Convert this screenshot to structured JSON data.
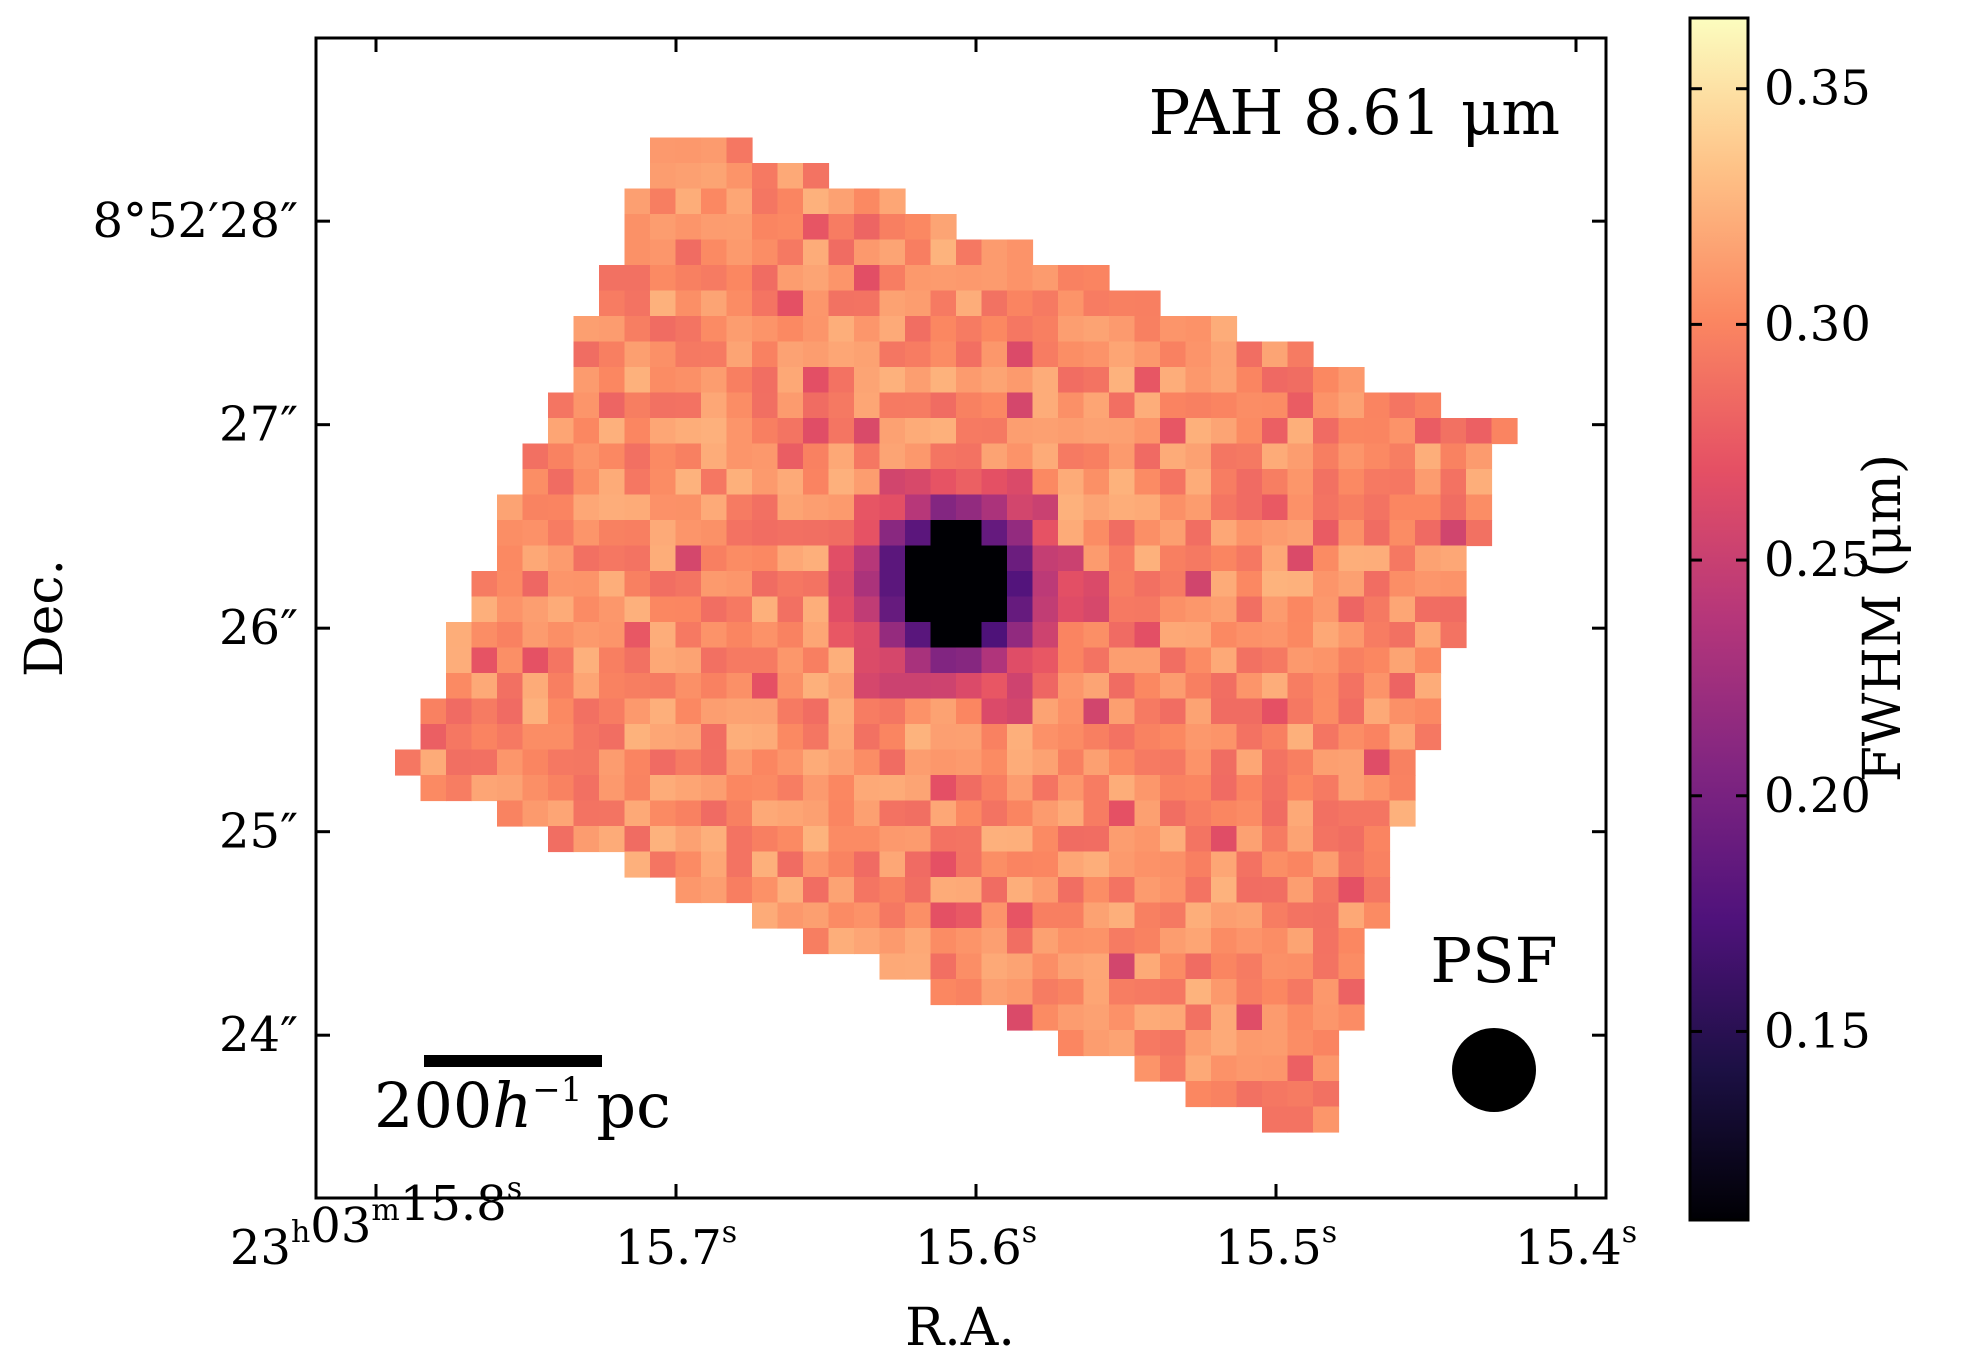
{
  "chart_data": {
    "type": "heatmap",
    "title": "",
    "annotation": "PAH 8.61 μm",
    "xlabel": "R.A.",
    "ylabel": "Dec.",
    "x_ticks": [
      {
        "ra_s": 15.8,
        "prefix": "23",
        "h": "h",
        "m_val": "03",
        "m": "m",
        "sec": "15.8",
        "s": "s"
      },
      {
        "ra_s": 15.7,
        "prefix": "",
        "h": "",
        "m_val": "",
        "m": "",
        "sec": "15.7",
        "s": "s"
      },
      {
        "ra_s": 15.6,
        "prefix": "",
        "h": "",
        "m_val": "",
        "m": "",
        "sec": "15.6",
        "s": "s"
      },
      {
        "ra_s": 15.5,
        "prefix": "",
        "h": "",
        "m_val": "",
        "m": "",
        "sec": "15.5",
        "s": "s"
      },
      {
        "ra_s": 15.4,
        "prefix": "",
        "h": "",
        "m_val": "",
        "m": "",
        "sec": "15.4",
        "s": "s"
      }
    ],
    "y_ticks": [
      {
        "dec_arcsec": 28,
        "label": "8°52′28″"
      },
      {
        "dec_arcsec": 27,
        "label": "27″"
      },
      {
        "dec_arcsec": 26,
        "label": "26″"
      },
      {
        "dec_arcsec": 25,
        "label": "25″"
      },
      {
        "dec_arcsec": 24,
        "label": "24″"
      }
    ],
    "xlim_ra_s": [
      15.82,
      15.39
    ],
    "ylim_dec_arcsec": [
      23.2,
      28.9
    ],
    "colorbar": {
      "label": "FWHM (μm)",
      "colormap": "magma",
      "range": [
        0.11,
        0.365
      ],
      "ticks": [
        "0.15",
        "0.20",
        "0.25",
        "0.30",
        "0.35"
      ]
    },
    "scale_bar": {
      "label_num": "200",
      "label_var": "h",
      "label_exp": "−1",
      "label_unit": "pc"
    },
    "psf_label": "PSF",
    "grid": false
  }
}
